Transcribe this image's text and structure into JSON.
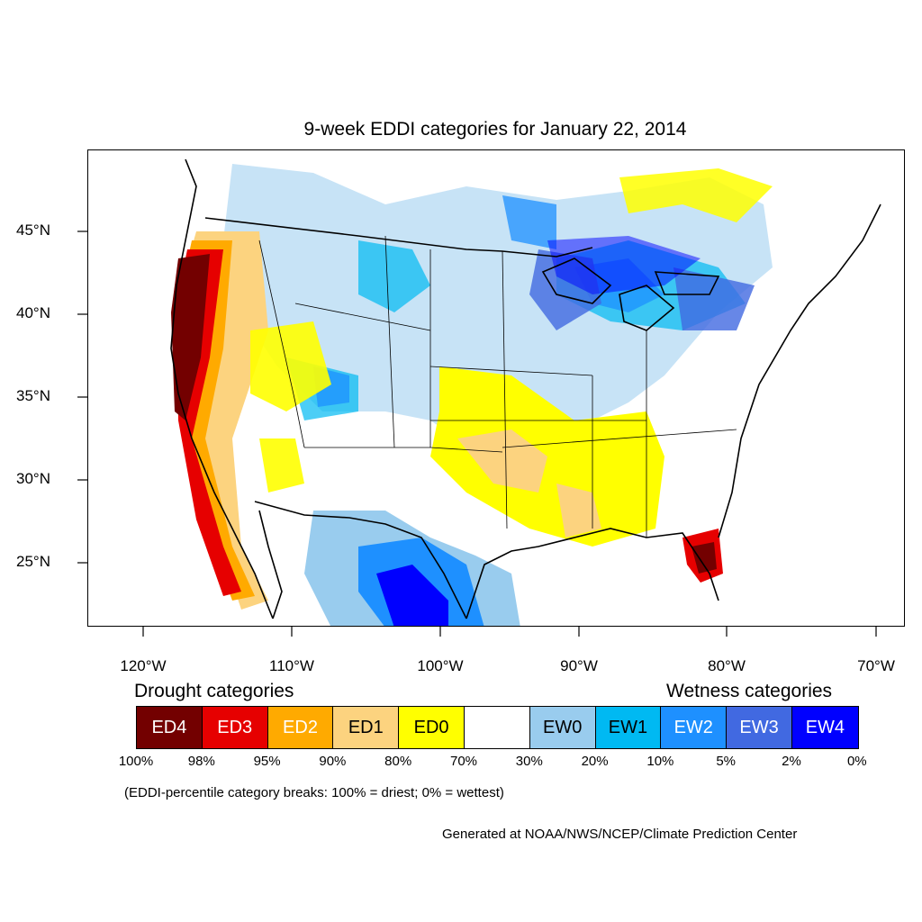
{
  "title": "9-week EDDI categories for January 22, 2014",
  "map": {
    "lat_labels": [
      "45°N",
      "40°N",
      "35°N",
      "30°N",
      "25°N"
    ],
    "lon_labels": [
      "120°W",
      "110°W",
      "100°W",
      "90°W",
      "80°W",
      "70°W"
    ]
  },
  "legend": {
    "drought_heading": "Drought categories",
    "wetness_heading": "Wetness categories",
    "categories": [
      {
        "label": "ED4",
        "color": "#730000",
        "text_color": "#ffffff"
      },
      {
        "label": "ED3",
        "color": "#e60000",
        "text_color": "#ffffff"
      },
      {
        "label": "ED2",
        "color": "#ffaa00",
        "text_color": "#ffffff"
      },
      {
        "label": "ED1",
        "color": "#fcd37f",
        "text_color": "#000000"
      },
      {
        "label": "ED0",
        "color": "#ffff00",
        "text_color": "#000000"
      },
      {
        "label": "",
        "color": "#ffffff",
        "text_color": "#000000"
      },
      {
        "label": "EW0",
        "color": "#99ccee",
        "text_color": "#000000"
      },
      {
        "label": "EW1",
        "color": "#00b9f2",
        "text_color": "#000000"
      },
      {
        "label": "EW2",
        "color": "#1e90ff",
        "text_color": "#ffffff"
      },
      {
        "label": "EW3",
        "color": "#4169e1",
        "text_color": "#ffffff"
      },
      {
        "label": "EW4",
        "color": "#0000ff",
        "text_color": "#ffffff"
      }
    ],
    "breaks": [
      "100%",
      "98%",
      "95%",
      "90%",
      "80%",
      "70%",
      "30%",
      "20%",
      "10%",
      "5%",
      "2%",
      "0%"
    ],
    "note": "(EDDI-percentile category breaks: 100% = driest; 0% = wettest)"
  },
  "credit": "Generated at NOAA/NWS/NCEP/Climate Prediction Center"
}
